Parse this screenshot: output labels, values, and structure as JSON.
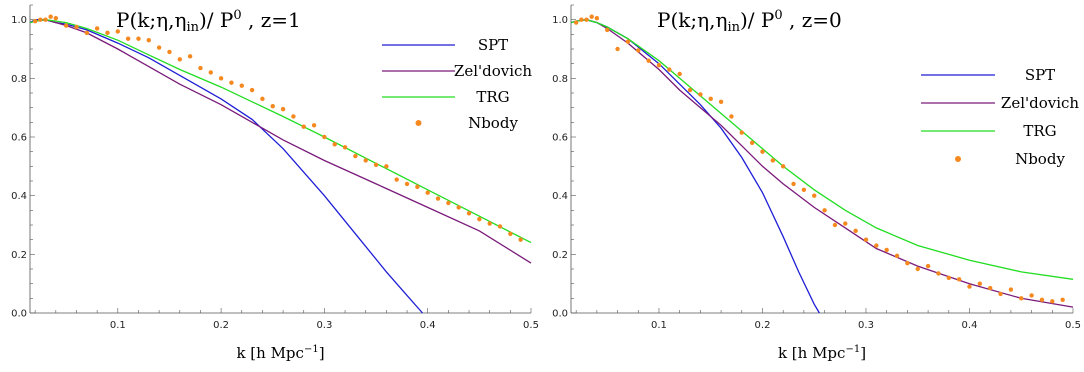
{
  "chart_data": [
    {
      "type": "line",
      "title_main": "P(k;η,η",
      "title_sub": "in",
      "title_tail": ")/ P",
      "title_sup": "0",
      "title_suffix": " ,  z=1",
      "xlabel_main": "k [h Mpc",
      "xlabel_sup": "−1",
      "xlabel_tail": "]",
      "xlim": [
        0.015,
        0.5
      ],
      "ylim": [
        0,
        1.05
      ],
      "xticks": [
        0.1,
        0.2,
        0.3,
        0.4,
        0.5
      ],
      "xtick_labels": [
        "0.1",
        "0.2",
        "0.3",
        "0.4",
        "0.5"
      ],
      "yticks": [
        0.0,
        0.2,
        0.4,
        0.6,
        0.8,
        1.0
      ],
      "ytick_labels": [
        "0.0",
        "0.2",
        "0.4",
        "0.6",
        "0.8",
        "1.0"
      ],
      "legend_position": "top-right",
      "series": [
        {
          "name": "SPT",
          "kind": "line",
          "color": "#1f1fd6",
          "x": [
            0.015,
            0.02,
            0.03,
            0.04,
            0.05,
            0.07,
            0.1,
            0.13,
            0.16,
            0.2,
            0.23,
            0.26,
            0.3,
            0.33,
            0.36,
            0.38,
            0.395
          ],
          "y": [
            0.99,
            1.0,
            1.0,
            0.99,
            0.985,
            0.965,
            0.92,
            0.87,
            0.81,
            0.73,
            0.66,
            0.56,
            0.4,
            0.27,
            0.14,
            0.06,
            0.0
          ]
        },
        {
          "name": "Zel'dovich",
          "kind": "line",
          "color": "#7a1a7a",
          "x": [
            0.015,
            0.02,
            0.03,
            0.04,
            0.05,
            0.07,
            0.1,
            0.13,
            0.16,
            0.2,
            0.23,
            0.26,
            0.3,
            0.35,
            0.4,
            0.45,
            0.5
          ],
          "y": [
            0.99,
            0.995,
            1.0,
            0.99,
            0.98,
            0.955,
            0.9,
            0.84,
            0.78,
            0.71,
            0.65,
            0.59,
            0.52,
            0.44,
            0.36,
            0.28,
            0.17
          ]
        },
        {
          "name": "TRG",
          "kind": "line",
          "color": "#22dd22",
          "x": [
            0.015,
            0.02,
            0.03,
            0.04,
            0.05,
            0.07,
            0.1,
            0.13,
            0.16,
            0.2,
            0.23,
            0.26,
            0.3,
            0.35,
            0.4,
            0.45,
            0.5
          ],
          "y": [
            0.99,
            0.995,
            1.0,
            0.995,
            0.99,
            0.97,
            0.93,
            0.88,
            0.83,
            0.77,
            0.72,
            0.67,
            0.6,
            0.51,
            0.42,
            0.33,
            0.24
          ]
        },
        {
          "name": "Nbody",
          "kind": "points",
          "color": "#f5881f",
          "x": [
            0.02,
            0.025,
            0.03,
            0.035,
            0.04,
            0.05,
            0.06,
            0.07,
            0.08,
            0.09,
            0.1,
            0.11,
            0.12,
            0.13,
            0.14,
            0.15,
            0.16,
            0.17,
            0.18,
            0.19,
            0.2,
            0.21,
            0.22,
            0.23,
            0.24,
            0.25,
            0.26,
            0.27,
            0.28,
            0.29,
            0.3,
            0.31,
            0.32,
            0.33,
            0.34,
            0.35,
            0.36,
            0.37,
            0.38,
            0.39,
            0.4,
            0.41,
            0.42,
            0.43,
            0.44,
            0.45,
            0.46,
            0.47,
            0.48,
            0.49
          ],
          "y": [
            0.995,
            1.0,
            1.0,
            1.01,
            1.005,
            0.98,
            0.975,
            0.955,
            0.97,
            0.955,
            0.96,
            0.935,
            0.935,
            0.93,
            0.905,
            0.89,
            0.865,
            0.875,
            0.835,
            0.82,
            0.8,
            0.785,
            0.775,
            0.76,
            0.73,
            0.705,
            0.695,
            0.67,
            0.635,
            0.64,
            0.6,
            0.575,
            0.565,
            0.535,
            0.52,
            0.505,
            0.5,
            0.455,
            0.44,
            0.43,
            0.41,
            0.39,
            0.375,
            0.36,
            0.34,
            0.32,
            0.305,
            0.295,
            0.27,
            0.25
          ]
        }
      ]
    },
    {
      "type": "line",
      "title_main": "P(k;η,η",
      "title_sub": "in",
      "title_tail": ")/ P",
      "title_sup": "0",
      "title_suffix": " ,  z=0",
      "xlabel_main": "k [h Mpc",
      "xlabel_sup": "−1",
      "xlabel_tail": "]",
      "xlim": [
        0.015,
        0.5
      ],
      "ylim": [
        0,
        1.05
      ],
      "xticks": [
        0.1,
        0.2,
        0.3,
        0.4,
        0.5
      ],
      "xtick_labels": [
        "0.1",
        "0.2",
        "0.3",
        "0.4",
        "0.5"
      ],
      "yticks": [
        0.0,
        0.2,
        0.4,
        0.6,
        0.8,
        1.0
      ],
      "ytick_labels": [
        "0.0",
        "0.2",
        "0.4",
        "0.6",
        "0.8",
        "1.0"
      ],
      "legend_position": "right",
      "series": [
        {
          "name": "SPT",
          "kind": "line",
          "color": "#1f1fd6",
          "x": [
            0.015,
            0.02,
            0.03,
            0.04,
            0.05,
            0.07,
            0.1,
            0.12,
            0.14,
            0.16,
            0.18,
            0.2,
            0.22,
            0.235,
            0.25,
            0.255
          ],
          "y": [
            0.99,
            0.995,
            1.0,
            0.99,
            0.975,
            0.935,
            0.85,
            0.78,
            0.71,
            0.63,
            0.53,
            0.41,
            0.26,
            0.14,
            0.03,
            0.0
          ]
        },
        {
          "name": "Zel'dovich",
          "kind": "line",
          "color": "#7a1a7a",
          "x": [
            0.015,
            0.02,
            0.03,
            0.04,
            0.05,
            0.07,
            0.1,
            0.12,
            0.14,
            0.16,
            0.18,
            0.2,
            0.22,
            0.25,
            0.28,
            0.31,
            0.35,
            0.4,
            0.45,
            0.5
          ],
          "y": [
            0.99,
            0.995,
            1.0,
            0.99,
            0.97,
            0.92,
            0.83,
            0.76,
            0.7,
            0.64,
            0.57,
            0.5,
            0.44,
            0.36,
            0.29,
            0.22,
            0.16,
            0.1,
            0.05,
            0.02
          ]
        },
        {
          "name": "TRG",
          "kind": "line",
          "color": "#22dd22",
          "x": [
            0.015,
            0.02,
            0.03,
            0.04,
            0.05,
            0.07,
            0.1,
            0.12,
            0.14,
            0.16,
            0.18,
            0.2,
            0.22,
            0.25,
            0.28,
            0.31,
            0.35,
            0.4,
            0.45,
            0.5
          ],
          "y": [
            0.99,
            0.995,
            1.0,
            0.99,
            0.975,
            0.935,
            0.86,
            0.8,
            0.74,
            0.68,
            0.62,
            0.56,
            0.5,
            0.42,
            0.35,
            0.29,
            0.23,
            0.18,
            0.14,
            0.115
          ]
        },
        {
          "name": "Nbody",
          "kind": "points",
          "color": "#f5881f",
          "x": [
            0.02,
            0.025,
            0.03,
            0.035,
            0.04,
            0.05,
            0.06,
            0.07,
            0.08,
            0.09,
            0.1,
            0.11,
            0.12,
            0.13,
            0.14,
            0.15,
            0.16,
            0.17,
            0.18,
            0.19,
            0.2,
            0.21,
            0.22,
            0.23,
            0.24,
            0.25,
            0.26,
            0.27,
            0.28,
            0.29,
            0.3,
            0.31,
            0.32,
            0.33,
            0.34,
            0.35,
            0.36,
            0.37,
            0.38,
            0.39,
            0.4,
            0.41,
            0.42,
            0.43,
            0.44,
            0.45,
            0.46,
            0.47,
            0.48,
            0.49
          ],
          "y": [
            0.99,
            1.0,
            1.0,
            1.01,
            1.005,
            0.965,
            0.9,
            0.925,
            0.895,
            0.86,
            0.845,
            0.83,
            0.815,
            0.76,
            0.745,
            0.73,
            0.72,
            0.67,
            0.615,
            0.58,
            0.55,
            0.52,
            0.5,
            0.44,
            0.42,
            0.4,
            0.35,
            0.3,
            0.305,
            0.28,
            0.25,
            0.23,
            0.215,
            0.195,
            0.17,
            0.15,
            0.16,
            0.135,
            0.12,
            0.115,
            0.09,
            0.1,
            0.085,
            0.065,
            0.08,
            0.05,
            0.06,
            0.045,
            0.04,
            0.045
          ]
        }
      ]
    }
  ]
}
